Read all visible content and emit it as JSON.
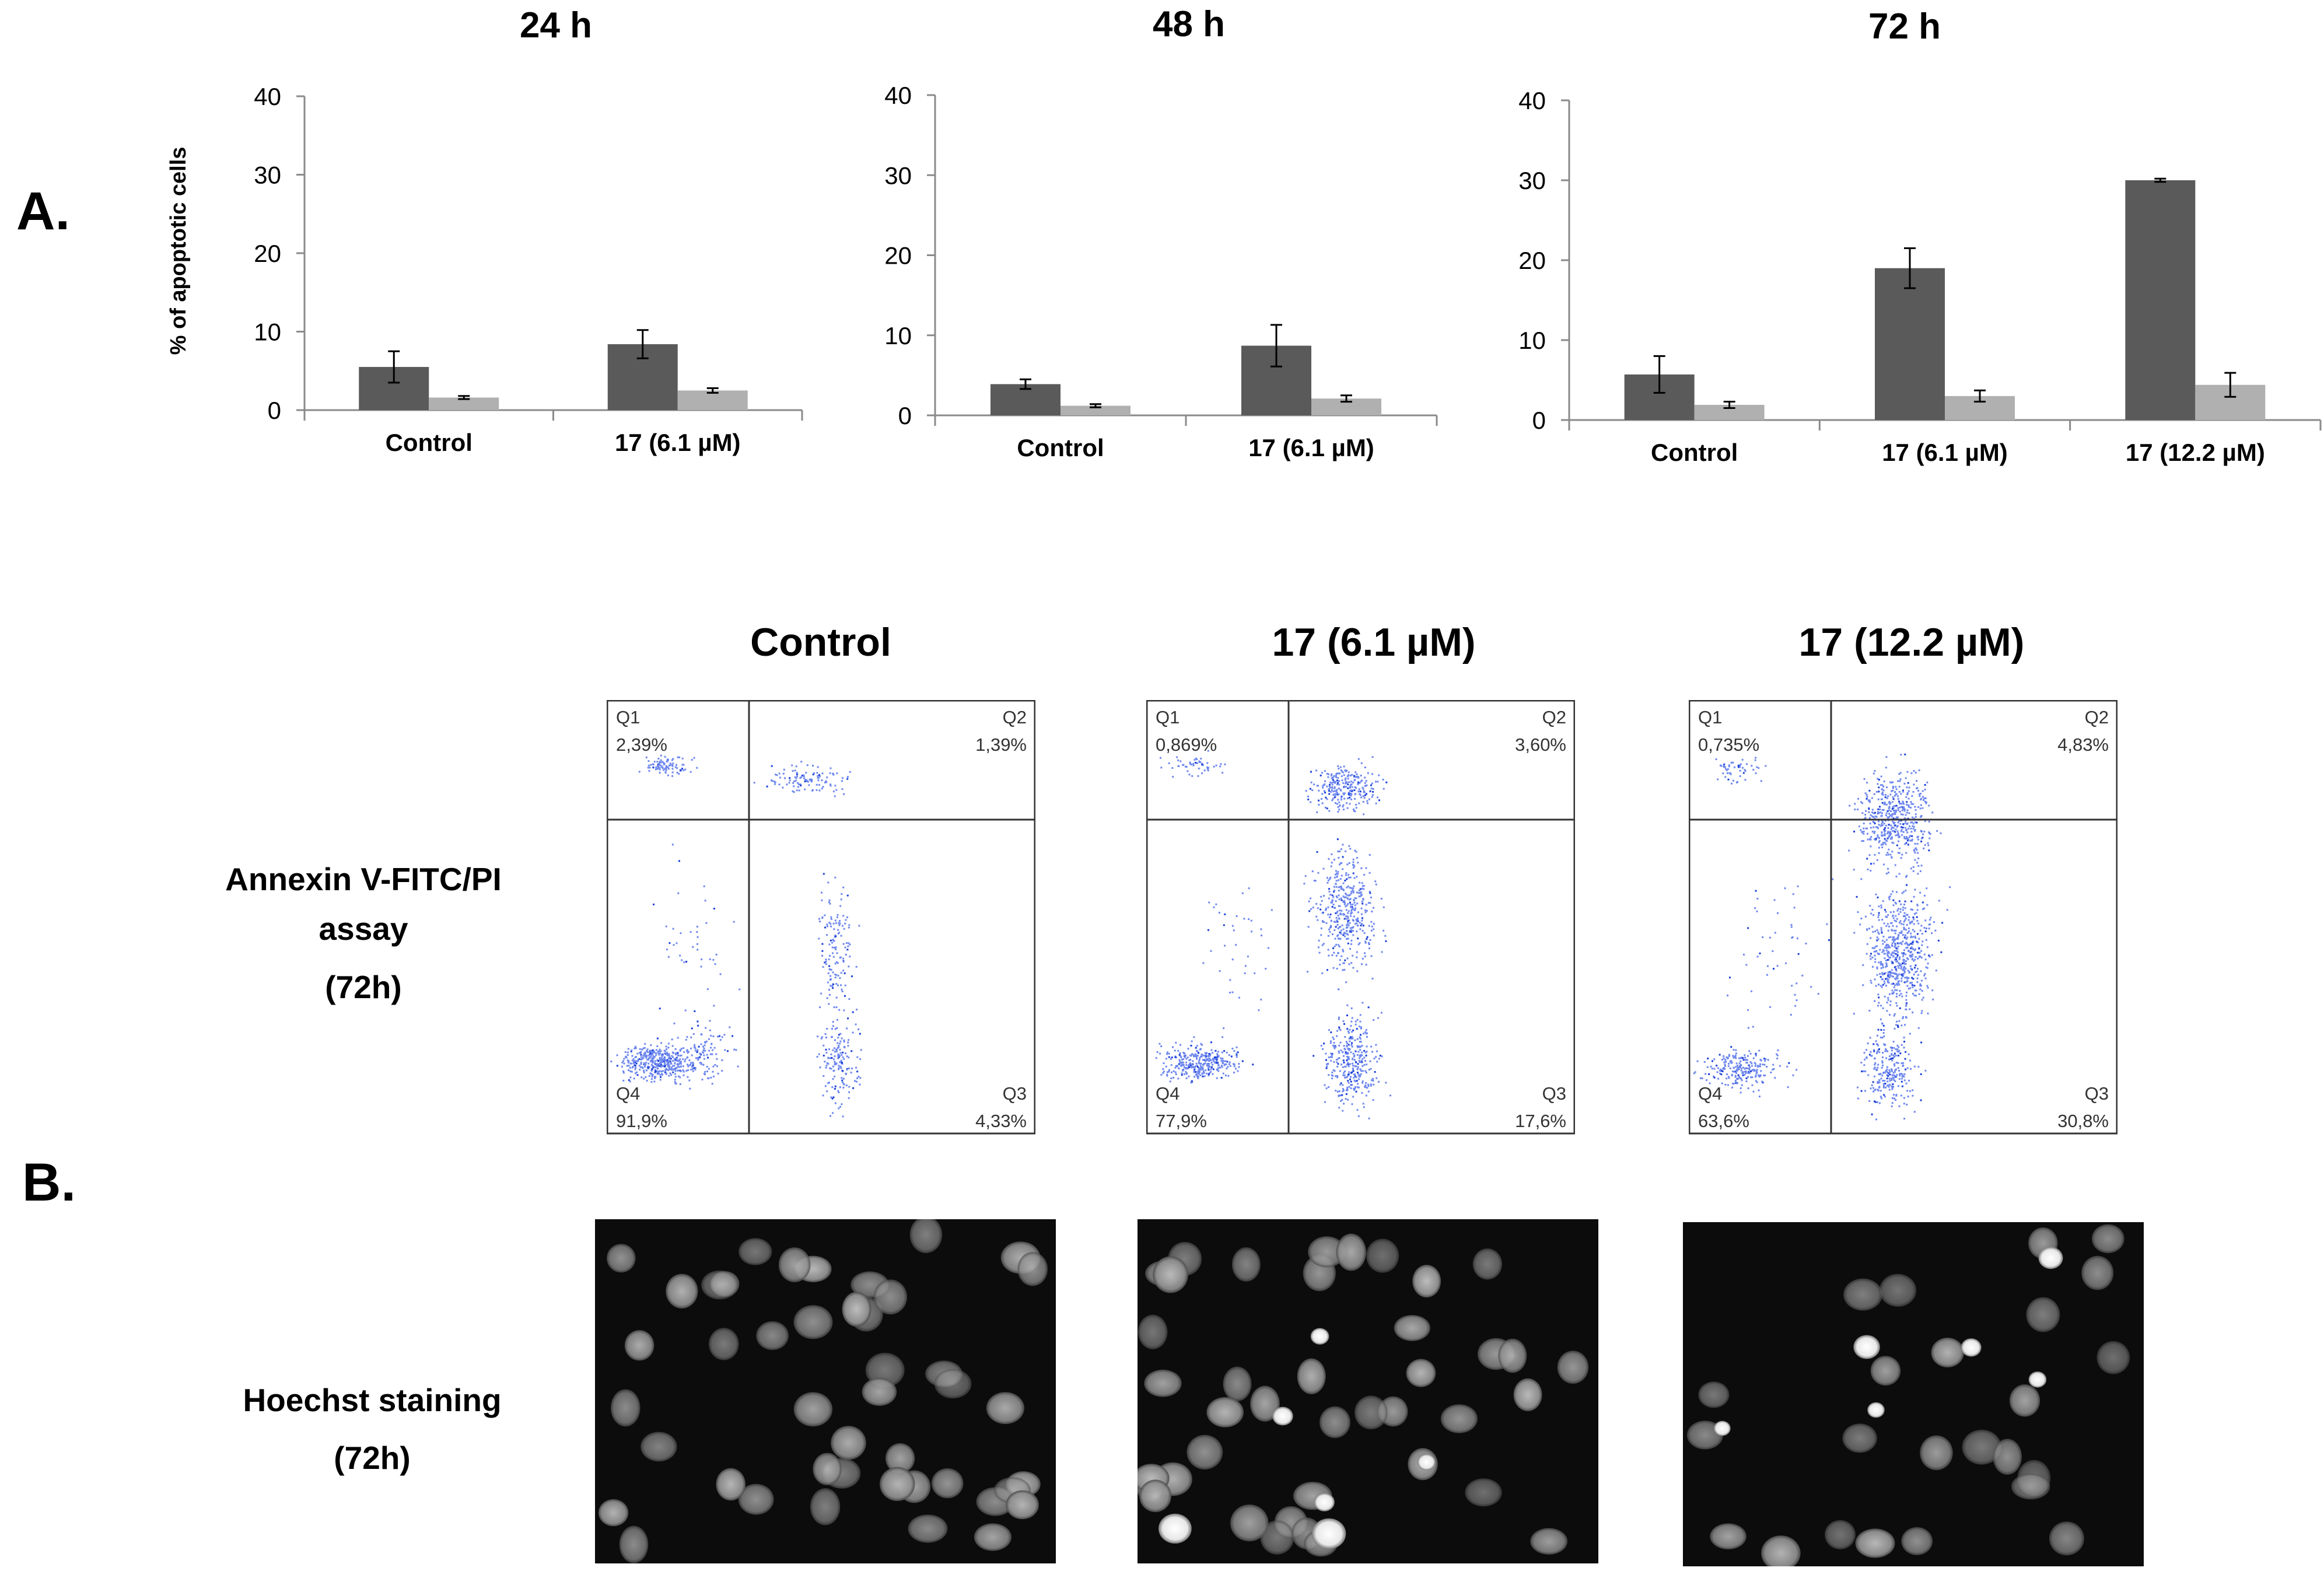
{
  "panel_labels": {
    "a": "A.",
    "b": "B."
  },
  "y_axis_label": "% of apoptotic cells",
  "y_ticks": [
    "0",
    "10",
    "20",
    "30",
    "40"
  ],
  "chart_data": [
    {
      "type": "bar",
      "title": "24 h",
      "ylabel": "% of apoptotic cells",
      "ylim": [
        0,
        40
      ],
      "categories": [
        "Control",
        "17 (6.1 µM)"
      ],
      "series": [
        {
          "values": [
            5.5,
            8.4
          ],
          "errors": [
            2.0,
            1.8
          ],
          "color": "#5a5a5a"
        },
        {
          "values": [
            1.6,
            2.5
          ],
          "errors": [
            0.2,
            0.3
          ],
          "color": "#b0b0b0"
        }
      ]
    },
    {
      "type": "bar",
      "title": "48 h",
      "ylabel": "",
      "ylim": [
        0,
        40
      ],
      "categories": [
        "Control",
        "17 (6.1 µM)"
      ],
      "series": [
        {
          "values": [
            3.9,
            8.7
          ],
          "errors": [
            0.6,
            2.6
          ],
          "color": "#5a5a5a"
        },
        {
          "values": [
            1.2,
            2.1
          ],
          "errors": [
            0.2,
            0.4
          ],
          "color": "#b0b0b0"
        }
      ]
    },
    {
      "type": "bar",
      "title": "72 h",
      "ylabel": "",
      "ylim": [
        0,
        40
      ],
      "categories": [
        "Control",
        "17 (6.1 µM)",
        "17 (12.2 µM)"
      ],
      "series": [
        {
          "values": [
            5.7,
            19.0,
            30.0
          ],
          "errors": [
            2.3,
            2.5,
            0.2
          ],
          "color": "#5a5a5a"
        },
        {
          "values": [
            1.9,
            3.0,
            4.4
          ],
          "errors": [
            0.4,
            0.7,
            1.5
          ],
          "color": "#b0b0b0"
        }
      ]
    }
  ],
  "flow": {
    "row_label": [
      "Annexin V-FITC/PI",
      "assay",
      "(72h)"
    ],
    "plots": [
      {
        "title": "Control",
        "q1": "Q1",
        "q1_value": "2,39%",
        "q2": "Q2",
        "q2_value": "1,39%",
        "q3": "Q3",
        "q3_value": "4,33%",
        "q4": "Q4",
        "q4_value": "91,9%"
      },
      {
        "title": "17 (6.1 µM)",
        "q1": "Q1",
        "q1_value": "0,869%",
        "q2": "Q2",
        "q2_value": "3,60%",
        "q3": "Q3",
        "q3_value": "17,6%",
        "q4": "Q4",
        "q4_value": "77,9%"
      },
      {
        "title": "17 (12.2 µM)",
        "q1": "Q1",
        "q1_value": "0,735%",
        "q2": "Q2",
        "q2_value": "4,83%",
        "q3": "Q3",
        "q3_value": "30,8%",
        "q4": "Q4",
        "q4_value": "63,6%"
      }
    ]
  },
  "hoechst": {
    "row_label": [
      "Hoechst staining",
      "(72h)"
    ]
  }
}
